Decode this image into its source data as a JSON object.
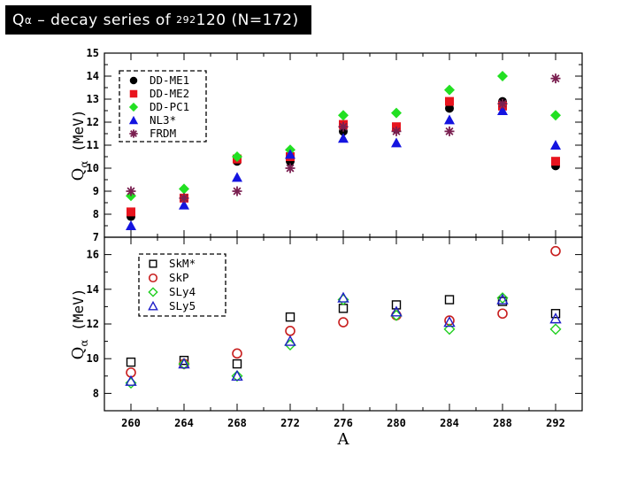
{
  "header": {
    "title_prefix": "Q",
    "title_alpha": "α",
    "title_mid": " – decay series of ",
    "title_sup": "292",
    "title_suffix": "120 (N=172)"
  },
  "chart_data": [
    {
      "type": "scatter",
      "ylabel_main": "Q",
      "ylabel_sub": "α",
      "ylabel_unit": " (MeV)",
      "ylim": [
        7,
        15
      ],
      "yticks": [
        7,
        8,
        9,
        10,
        11,
        12,
        13,
        14,
        15
      ],
      "xlim": [
        258,
        294
      ],
      "legend_position": "top-left",
      "series": [
        {
          "name": "DD-ME1",
          "marker": "circle",
          "color": "#000000",
          "x": [
            260,
            264,
            268,
            272,
            276,
            280,
            284,
            288,
            292
          ],
          "y": [
            7.9,
            8.7,
            10.3,
            10.3,
            11.6,
            11.7,
            12.6,
            12.9,
            10.1
          ]
        },
        {
          "name": "DD-ME2",
          "marker": "square",
          "color": "#e8141e",
          "x": [
            260,
            264,
            268,
            272,
            276,
            280,
            284,
            288,
            292
          ],
          "y": [
            8.1,
            8.7,
            10.4,
            10.5,
            11.9,
            11.8,
            12.9,
            12.7,
            10.3
          ]
        },
        {
          "name": "DD-PC1",
          "marker": "diamond",
          "color": "#22e022",
          "x": [
            260,
            264,
            268,
            272,
            276,
            280,
            284,
            288,
            292
          ],
          "y": [
            8.8,
            9.1,
            10.5,
            10.8,
            12.3,
            12.4,
            13.4,
            14.0,
            12.3
          ]
        },
        {
          "name": "NL3*",
          "marker": "triangle",
          "color": "#1414e0",
          "x": [
            260,
            264,
            268,
            272,
            276,
            280,
            284,
            288,
            292
          ],
          "y": [
            7.5,
            8.4,
            9.6,
            10.6,
            11.3,
            11.1,
            12.1,
            12.5,
            11.0
          ]
        },
        {
          "name": "FRDM",
          "marker": "star",
          "color": "#7a1f50",
          "x": [
            260,
            264,
            268,
            272,
            276,
            280,
            284,
            288,
            292
          ],
          "y": [
            9.0,
            8.7,
            9.0,
            10.0,
            11.8,
            11.6,
            11.6,
            12.8,
            13.9
          ]
        }
      ]
    },
    {
      "type": "scatter",
      "xlabel": "A",
      "ylabel_main": "Q",
      "ylabel_sub": "α",
      "ylabel_unit": " (MeV)",
      "ylim": [
        7,
        17
      ],
      "yticks": [
        8,
        10,
        12,
        14,
        16
      ],
      "xlim": [
        258,
        294
      ],
      "xticks": [
        260,
        264,
        268,
        272,
        276,
        280,
        284,
        288,
        292
      ],
      "legend_position": "top-left",
      "series": [
        {
          "name": "SkM*",
          "marker": "open-square",
          "color": "#000000",
          "x": [
            260,
            264,
            268,
            272,
            276,
            280,
            284,
            288,
            292
          ],
          "y": [
            9.8,
            9.9,
            9.7,
            12.4,
            12.9,
            13.1,
            13.4,
            13.3,
            12.6
          ]
        },
        {
          "name": "SkP",
          "marker": "open-circle",
          "color": "#c81e1e",
          "x": [
            260,
            264,
            268,
            272,
            276,
            280,
            284,
            288,
            292
          ],
          "y": [
            9.2,
            9.7,
            10.3,
            11.6,
            12.1,
            12.5,
            12.2,
            12.6,
            16.2
          ]
        },
        {
          "name": "SLy4",
          "marker": "open-diamond",
          "color": "#22d022",
          "x": [
            260,
            264,
            268,
            272,
            276,
            280,
            284,
            288,
            292
          ],
          "y": [
            8.6,
            9.7,
            9.0,
            10.8,
            13.4,
            12.5,
            11.7,
            13.5,
            11.7
          ]
        },
        {
          "name": "SLy5",
          "marker": "open-triangle",
          "color": "#1e1ec8",
          "x": [
            260,
            264,
            268,
            272,
            276,
            280,
            284,
            288,
            292
          ],
          "y": [
            8.7,
            9.7,
            9.0,
            11.0,
            13.5,
            12.7,
            12.1,
            13.4,
            12.3
          ]
        }
      ]
    }
  ]
}
